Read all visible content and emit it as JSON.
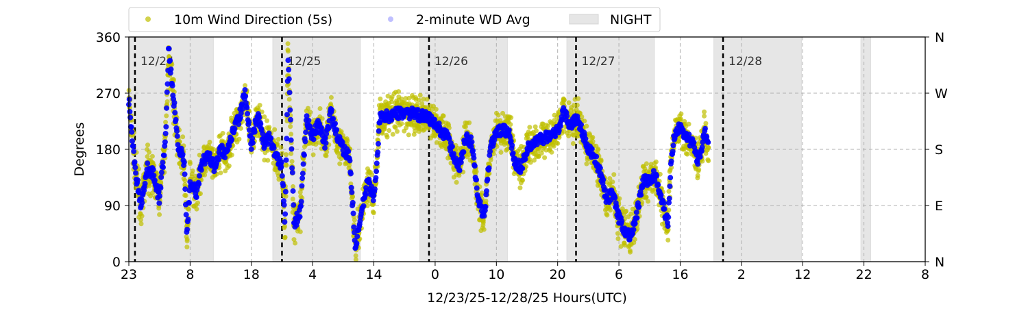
{
  "chart_data": {
    "type": "scatter",
    "xlabel": "12/23/25-12/28/25  Hours(UTC)",
    "ylabel": "Degrees",
    "ylim": [
      0,
      360
    ],
    "xlim_hours_from_start": [
      0,
      130
    ],
    "start_hour_label": 23,
    "x_tick_labels": [
      "23",
      "8",
      "18",
      "4",
      "14",
      "0",
      "10",
      "20",
      "6",
      "16",
      "2",
      "12",
      "22",
      "8"
    ],
    "y_tick_labels": [
      "0",
      "90",
      "180",
      "270",
      "360"
    ],
    "y_ticks": [
      0,
      90,
      180,
      270,
      360
    ],
    "right_tick_labels": [
      "N",
      "E",
      "S",
      "W",
      "N"
    ],
    "grid": true,
    "legend": {
      "placement": "top",
      "entries": [
        "10m Wind Direction (5s)",
        "2-minute WD Avg",
        "NIGHT"
      ]
    },
    "colors": {
      "wd5s": "#bfbf00",
      "avg": "#0000ff",
      "night": "#e6e6e6"
    },
    "day_markers": [
      {
        "hour": 1,
        "label": "12/24"
      },
      {
        "hour": 25,
        "label": "12/25"
      },
      {
        "hour": 49,
        "label": "12/26"
      },
      {
        "hour": 73,
        "label": "12/27"
      },
      {
        "hour": 97,
        "label": "12/28"
      }
    ],
    "night_periods_hours": [
      [
        0,
        13.8
      ],
      [
        23.5,
        37.8
      ],
      [
        47.5,
        61.8
      ],
      [
        71.5,
        85.8
      ],
      [
        95.5,
        109.8
      ],
      [
        119.5,
        121.1
      ]
    ],
    "series_2min_avg_approx": {
      "hours": [
        0,
        1,
        2,
        3,
        4,
        5,
        6,
        6.5,
        8,
        9,
        9.5,
        10,
        11,
        12,
        13,
        14,
        15,
        16,
        17,
        18,
        19,
        20,
        21,
        22,
        23,
        24,
        25,
        25.5,
        26,
        27,
        28,
        29,
        30,
        31,
        32,
        33,
        34,
        35,
        36,
        37,
        38,
        39,
        40,
        41,
        45,
        49,
        50,
        51,
        52,
        53,
        54,
        55,
        56,
        57,
        58,
        59,
        60,
        62,
        63,
        64,
        65,
        66,
        68,
        70,
        71,
        72,
        73,
        74,
        75,
        76,
        77,
        78,
        79,
        80,
        81,
        82,
        83,
        84,
        85,
        86,
        87,
        88,
        88.5,
        89,
        90,
        91,
        92,
        93,
        94,
        94.6
      ],
      "degrees": [
        260,
        150,
        90,
        150,
        140,
        100,
        200,
        340,
        190,
        160,
        40,
        130,
        110,
        160,
        170,
        150,
        180,
        170,
        210,
        230,
        270,
        180,
        240,
        190,
        200,
        170,
        150,
        60,
        330,
        60,
        80,
        230,
        200,
        220,
        190,
        240,
        200,
        180,
        170,
        20,
        80,
        130,
        100,
        230,
        240,
        230,
        220,
        210,
        200,
        170,
        150,
        200,
        190,
        100,
        70,
        180,
        210,
        210,
        160,
        150,
        180,
        190,
        200,
        210,
        240,
        220,
        230,
        210,
        180,
        170,
        140,
        100,
        110,
        70,
        50,
        40,
        80,
        130,
        130,
        140,
        100,
        60,
        160,
        200,
        220,
        200,
        190,
        160,
        210,
        190
      ]
    }
  }
}
